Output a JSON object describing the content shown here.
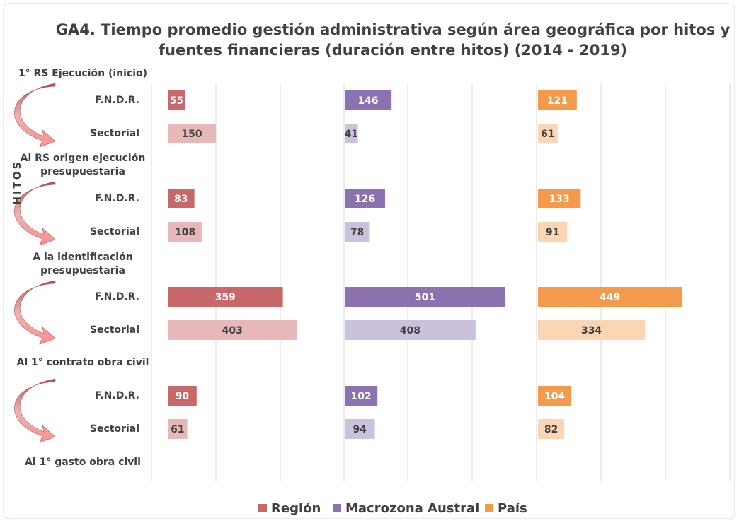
{
  "chart_data": {
    "type": "bar",
    "orientation": "horizontal",
    "title": [
      "GA4. Tiempo promedio gestión administrativa según área geográfica por hitos y",
      "fuentes financieras  (duración entre hitos) (2014 - 2019)"
    ],
    "y_axis_label": "HITOS",
    "milestones": [
      [
        "1° RS Ejecución (inicio)"
      ],
      [
        "Al RS origen ejecución",
        "presupuestaria"
      ],
      [
        "A la identificación",
        "presupuestaria"
      ],
      [
        "Al 1° contrato obra civil"
      ],
      [
        "Al 1° gasto obra civil"
      ]
    ],
    "categories": [
      "F.N.D.R.",
      "Sectorial",
      "F.N.D.R.",
      "Sectorial",
      "F.N.D.R.",
      "Sectorial",
      "F.N.D.R.",
      "Sectorial"
    ],
    "series": [
      {
        "name": "Región",
        "color": "#c9686b",
        "sectorial_color": "#e6b8b8",
        "values": [
          55,
          150,
          83,
          108,
          359,
          403,
          90,
          61
        ]
      },
      {
        "name": "Macrozona Austral",
        "color": "#8c72ae",
        "sectorial_color": "#ccc1dc",
        "values": [
          146,
          41,
          126,
          78,
          501,
          408,
          102,
          94
        ]
      },
      {
        "name": "País",
        "color": "#f5994a",
        "sectorial_color": "#fbd5b4",
        "values": [
          121,
          61,
          133,
          91,
          449,
          334,
          104,
          82
        ]
      }
    ],
    "xlim": [
      0,
      600
    ],
    "grid": true,
    "legend": "bottom"
  }
}
